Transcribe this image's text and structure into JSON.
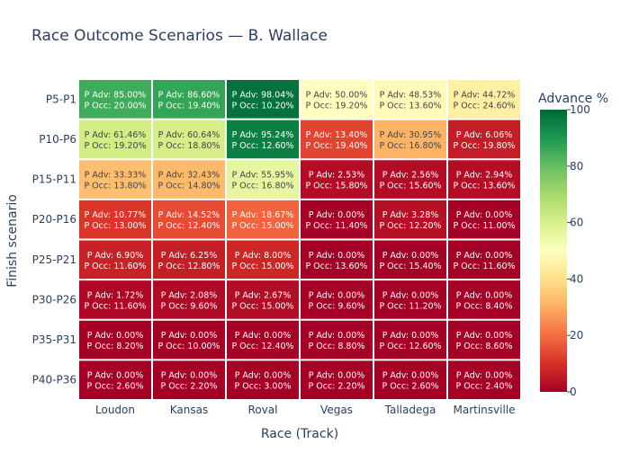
{
  "chart_data": {
    "type": "heatmap",
    "title": "Race Outcome Scenarios — B. Wallace",
    "xlabel": "Race (Track)",
    "ylabel": "Finish scenario",
    "x_categories": [
      "Loudon",
      "Kansas",
      "Roval",
      "Vegas",
      "Talladega",
      "Martinsville"
    ],
    "y_categories": [
      "P5-P1",
      "P10-P6",
      "P15-P11",
      "P20-P16",
      "P25-P21",
      "P30-P26",
      "P35-P31",
      "P40-P36"
    ],
    "colorbar": {
      "title": "Advance %",
      "range": [
        0,
        100
      ],
      "ticks": [
        "0",
        "20",
        "40",
        "60",
        "80",
        "100"
      ]
    },
    "colorscale": "RdYlGn",
    "adv_prefix": "P Adv: ",
    "occ_prefix": "P Occ: ",
    "p_adv": [
      [
        "85.00%",
        "86.60%",
        "98.04%",
        "50.00%",
        "48.53%",
        "44.72%"
      ],
      [
        "61.46%",
        "60.64%",
        "95.24%",
        "13.40%",
        "30.95%",
        "6.06%"
      ],
      [
        "33.33%",
        "32.43%",
        "55.95%",
        "2.53%",
        "2.56%",
        "2.94%"
      ],
      [
        "10.77%",
        "14.52%",
        "18.67%",
        "0.00%",
        "3.28%",
        "0.00%"
      ],
      [
        "6.90%",
        "6.25%",
        "8.00%",
        "0.00%",
        "0.00%",
        "0.00%"
      ],
      [
        "1.72%",
        "2.08%",
        "2.67%",
        "0.00%",
        "0.00%",
        "0.00%"
      ],
      [
        "0.00%",
        "0.00%",
        "0.00%",
        "0.00%",
        "0.00%",
        "0.00%"
      ],
      [
        "0.00%",
        "0.00%",
        "0.00%",
        "0.00%",
        "0.00%",
        "0.00%"
      ]
    ],
    "p_occ": [
      [
        "20.00%",
        "19.40%",
        "10.20%",
        "19.20%",
        "13.60%",
        "24.60%"
      ],
      [
        "19.20%",
        "18.80%",
        "12.60%",
        "19.40%",
        "16.80%",
        "19.80%"
      ],
      [
        "13.80%",
        "14.80%",
        "16.80%",
        "15.80%",
        "15.60%",
        "13.60%"
      ],
      [
        "13.00%",
        "12.40%",
        "15.00%",
        "11.40%",
        "12.20%",
        "11.00%"
      ],
      [
        "11.60%",
        "12.80%",
        "15.00%",
        "13.60%",
        "15.40%",
        "11.60%"
      ],
      [
        "11.60%",
        "9.60%",
        "15.00%",
        "9.60%",
        "11.20%",
        "8.40%"
      ],
      [
        "8.20%",
        "10.00%",
        "12.40%",
        "8.80%",
        "12.60%",
        "8.60%"
      ],
      [
        "2.60%",
        "2.20%",
        "3.00%",
        "2.20%",
        "2.60%",
        "2.40%"
      ]
    ]
  }
}
